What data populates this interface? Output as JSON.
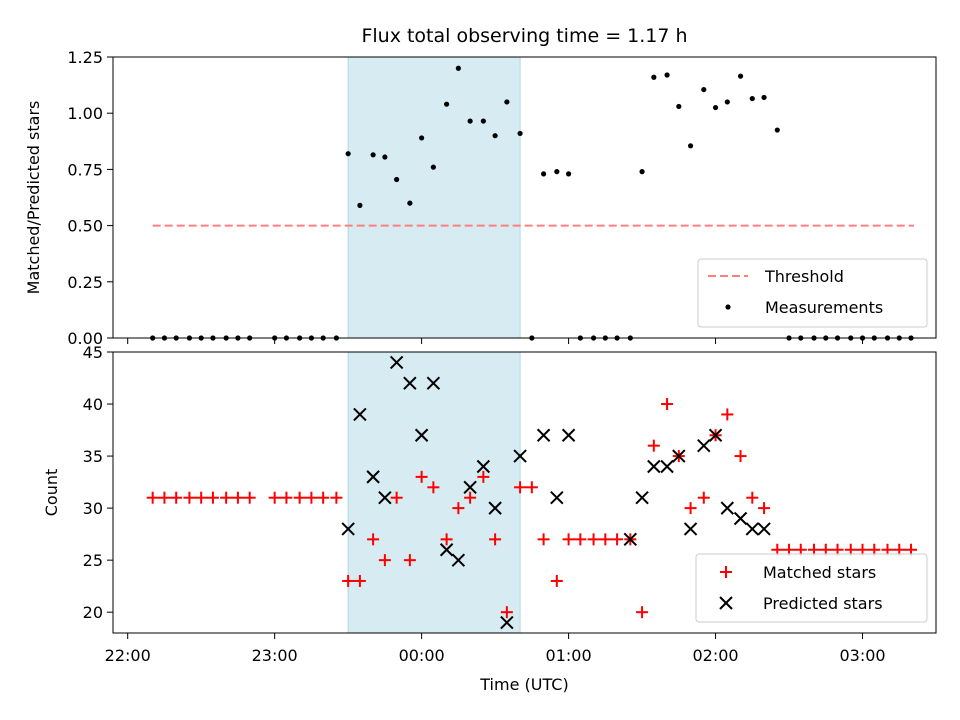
{
  "chart_data": [
    {
      "type": "scatter",
      "title": "Flux total observing time = 1.17 h",
      "xlabel": "",
      "ylabel": "Matched/Predicted stars",
      "xlim": [
        -0.1,
        5.5
      ],
      "ylim": [
        0,
        1.25
      ],
      "yticks": [
        "0.00",
        "0.25",
        "0.50",
        "0.75",
        "1.00",
        "1.25"
      ],
      "ytick_values": [
        0,
        0.25,
        0.5,
        0.75,
        1.0,
        1.25
      ],
      "shaded_region_hours": [
        1.5,
        2.67
      ],
      "shaded_color": "#add8e6",
      "threshold": {
        "name": "Threshold",
        "value": 0.5,
        "x_range": [
          0.17,
          5.35
        ],
        "color": "#ff7f7f"
      },
      "legend": {
        "position": "lower right",
        "entries": [
          "Threshold",
          "Measurements"
        ]
      },
      "series": [
        {
          "name": "Measurements",
          "color": "#000000",
          "marker": "dot",
          "x": [
            0.17,
            0.25,
            0.33,
            0.42,
            0.5,
            0.58,
            0.67,
            0.75,
            0.83,
            1.0,
            1.08,
            1.17,
            1.25,
            1.33,
            1.42,
            1.5,
            1.58,
            1.67,
            1.75,
            1.83,
            1.92,
            2.0,
            2.08,
            2.17,
            2.25,
            2.33,
            2.42,
            2.5,
            2.58,
            2.67,
            2.75,
            2.83,
            2.92,
            3.0,
            3.08,
            3.17,
            3.25,
            3.33,
            3.42,
            3.5,
            3.58,
            3.67,
            3.75,
            3.83,
            3.92,
            4.0,
            4.08,
            4.17,
            4.25,
            4.33,
            4.42,
            4.5,
            4.58,
            4.67,
            4.75,
            4.83,
            4.92,
            5.0,
            5.08,
            5.17,
            5.25,
            5.33
          ],
          "y": [
            0,
            0,
            0,
            0,
            0,
            0,
            0,
            0,
            0,
            0,
            0,
            0,
            0,
            0,
            0,
            0.82,
            0.59,
            0.815,
            0.805,
            0.705,
            0.6,
            0.89,
            0.76,
            1.04,
            1.2,
            0.965,
            0.965,
            0.9,
            1.05,
            0.91,
            0,
            0.73,
            0.74,
            0.73,
            0,
            0,
            0,
            0,
            0,
            0.74,
            1.16,
            1.17,
            1.03,
            0.855,
            1.105,
            1.025,
            1.05,
            1.165,
            1.065,
            1.07,
            0.925,
            0,
            0,
            0,
            0,
            0,
            0,
            0,
            0,
            0,
            0,
            0
          ]
        }
      ]
    },
    {
      "type": "scatter",
      "title": "",
      "xlabel": "Time (UTC)",
      "ylabel": "Count",
      "xlim": [
        -0.1,
        5.5
      ],
      "ylim": [
        18,
        45
      ],
      "xticks": [
        "22:00",
        "23:00",
        "00:00",
        "01:00",
        "02:00",
        "03:00"
      ],
      "xtick_values": [
        0,
        1,
        2,
        3,
        4,
        5
      ],
      "yticks": [
        "20",
        "25",
        "30",
        "35",
        "40",
        "45"
      ],
      "ytick_values": [
        20,
        25,
        30,
        35,
        40,
        45
      ],
      "shaded_region_hours": [
        1.5,
        2.67
      ],
      "shaded_color": "#add8e6",
      "legend": {
        "position": "lower right",
        "entries": [
          "Matched stars",
          "Predicted stars"
        ]
      },
      "series": [
        {
          "name": "Matched stars",
          "color": "#ff0000",
          "marker": "plus",
          "x": [
            0.17,
            0.25,
            0.33,
            0.42,
            0.5,
            0.58,
            0.67,
            0.75,
            0.83,
            1.0,
            1.08,
            1.17,
            1.25,
            1.33,
            1.42,
            1.5,
            1.58,
            1.67,
            1.75,
            1.83,
            1.92,
            2.0,
            2.08,
            2.17,
            2.25,
            2.33,
            2.42,
            2.5,
            2.58,
            2.67,
            2.75,
            2.83,
            2.92,
            3.0,
            3.08,
            3.17,
            3.25,
            3.33,
            3.42,
            3.5,
            3.58,
            3.67,
            3.75,
            3.83,
            3.92,
            4.0,
            4.08,
            4.17,
            4.25,
            4.33,
            4.42,
            4.5,
            4.58,
            4.67,
            4.75,
            4.83,
            4.92,
            5.0,
            5.08,
            5.17,
            5.25,
            5.33
          ],
          "y": [
            31,
            31,
            31,
            31,
            31,
            31,
            31,
            31,
            31,
            31,
            31,
            31,
            31,
            31,
            31,
            23,
            23,
            27,
            25,
            31,
            25,
            33,
            32,
            27,
            30,
            31,
            33,
            27,
            20,
            32,
            32,
            27,
            23,
            27,
            27,
            27,
            27,
            27,
            27,
            20,
            36,
            40,
            35,
            30,
            31,
            37,
            39,
            35,
            31,
            30,
            26,
            26,
            26,
            26,
            26,
            26,
            26,
            26,
            26,
            26,
            26,
            26
          ]
        },
        {
          "name": "Predicted stars",
          "color": "#000000",
          "marker": "x",
          "x": [
            1.5,
            1.58,
            1.67,
            1.75,
            1.83,
            1.92,
            2.0,
            2.08,
            2.17,
            2.25,
            2.33,
            2.42,
            2.5,
            2.58,
            2.67,
            2.83,
            2.92,
            3.0,
            3.42,
            3.5,
            3.58,
            3.67,
            3.75,
            3.83,
            3.92,
            4.0,
            4.08,
            4.17,
            4.25,
            4.33
          ],
          "y": [
            28,
            39,
            33,
            31,
            44,
            42,
            37,
            42,
            26,
            25,
            32,
            34,
            30,
            19,
            35,
            37,
            31,
            37,
            27,
            31,
            34,
            34,
            35,
            28,
            36,
            37,
            30,
            29,
            28,
            28
          ]
        }
      ]
    }
  ]
}
